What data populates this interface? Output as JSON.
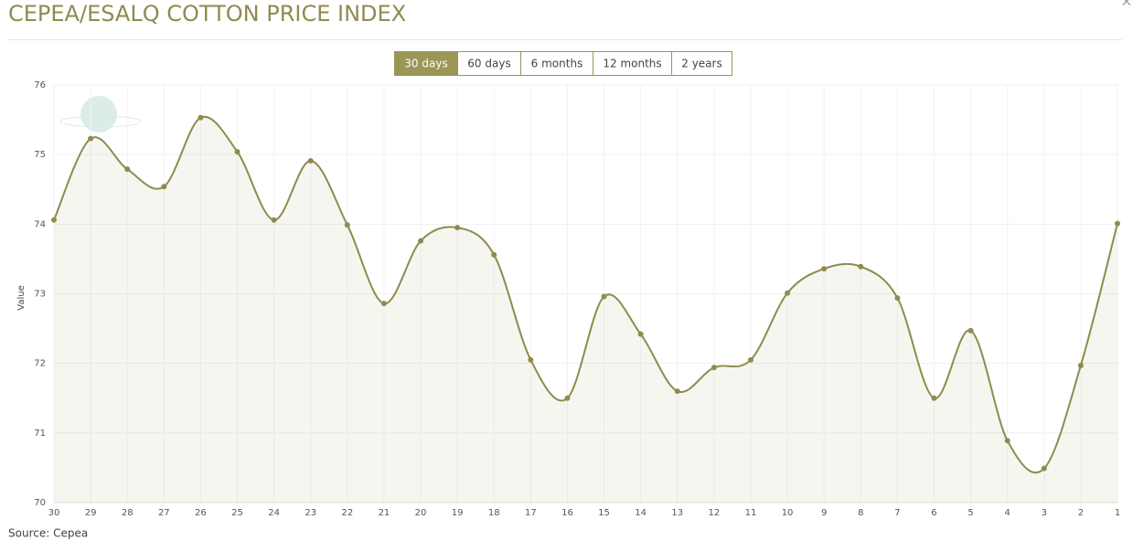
{
  "header": {
    "title": "CEPEA/ESALQ COTTON PRICE INDEX",
    "close": "×"
  },
  "controls": {
    "ranges": [
      "30 days",
      "60 days",
      "6 months",
      "12 months",
      "2 years"
    ]
  },
  "chart_data": {
    "type": "area-spline",
    "y_label": "Value",
    "categories": [
      "30",
      "29",
      "28",
      "27",
      "26",
      "25",
      "24",
      "23",
      "22",
      "21",
      "20",
      "19",
      "18",
      "17",
      "16",
      "15",
      "14",
      "13",
      "12",
      "11",
      "10",
      "9",
      "8",
      "7",
      "6",
      "5",
      "4",
      "3",
      "2",
      "1"
    ],
    "series": [
      {
        "name": "Value",
        "color": "#8f8b4e",
        "values": [
          74.06,
          75.23,
          74.79,
          74.54,
          75.53,
          75.04,
          74.06,
          74.91,
          73.99,
          72.86,
          73.76,
          73.95,
          73.56,
          72.05,
          71.5,
          72.96,
          72.42,
          71.6,
          71.94,
          72.05,
          73.01,
          73.36,
          73.39,
          72.94,
          71.5,
          72.47,
          70.89,
          70.49,
          71.97,
          74.01
        ]
      }
    ],
    "ylim": [
      70,
      76
    ],
    "yticks": [
      70,
      71,
      72,
      73,
      74,
      75,
      76
    ],
    "grid": true
  },
  "footer": {
    "source": "Source: Cepea"
  }
}
